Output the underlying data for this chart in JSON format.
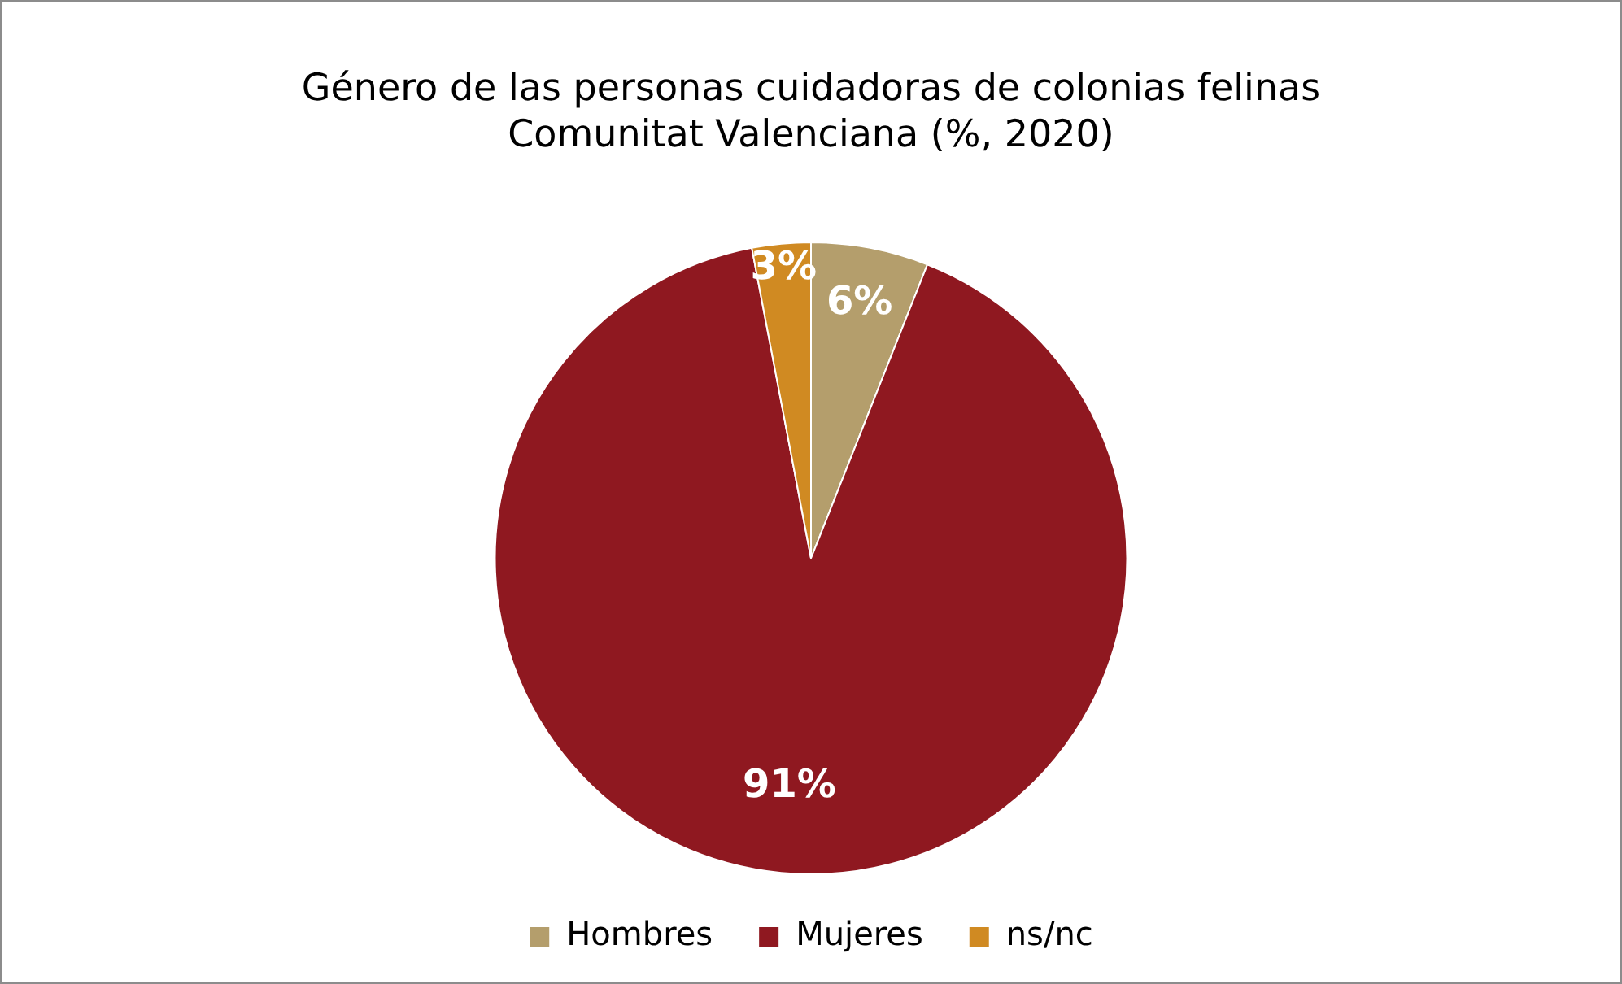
{
  "chart_data": {
    "type": "pie",
    "title": "Género de las personas cuidadoras de colonias felinas\nComunitat Valenciana (%, 2020)",
    "categories": [
      "Hombres",
      "Mujeres",
      "ns/nc"
    ],
    "values": [
      6,
      91,
      3
    ],
    "colors": [
      "#b49e6c",
      "#8f1820",
      "#d08a22"
    ],
    "value_labels": [
      "6%",
      "91%",
      "3%"
    ],
    "legend": "bottom"
  }
}
